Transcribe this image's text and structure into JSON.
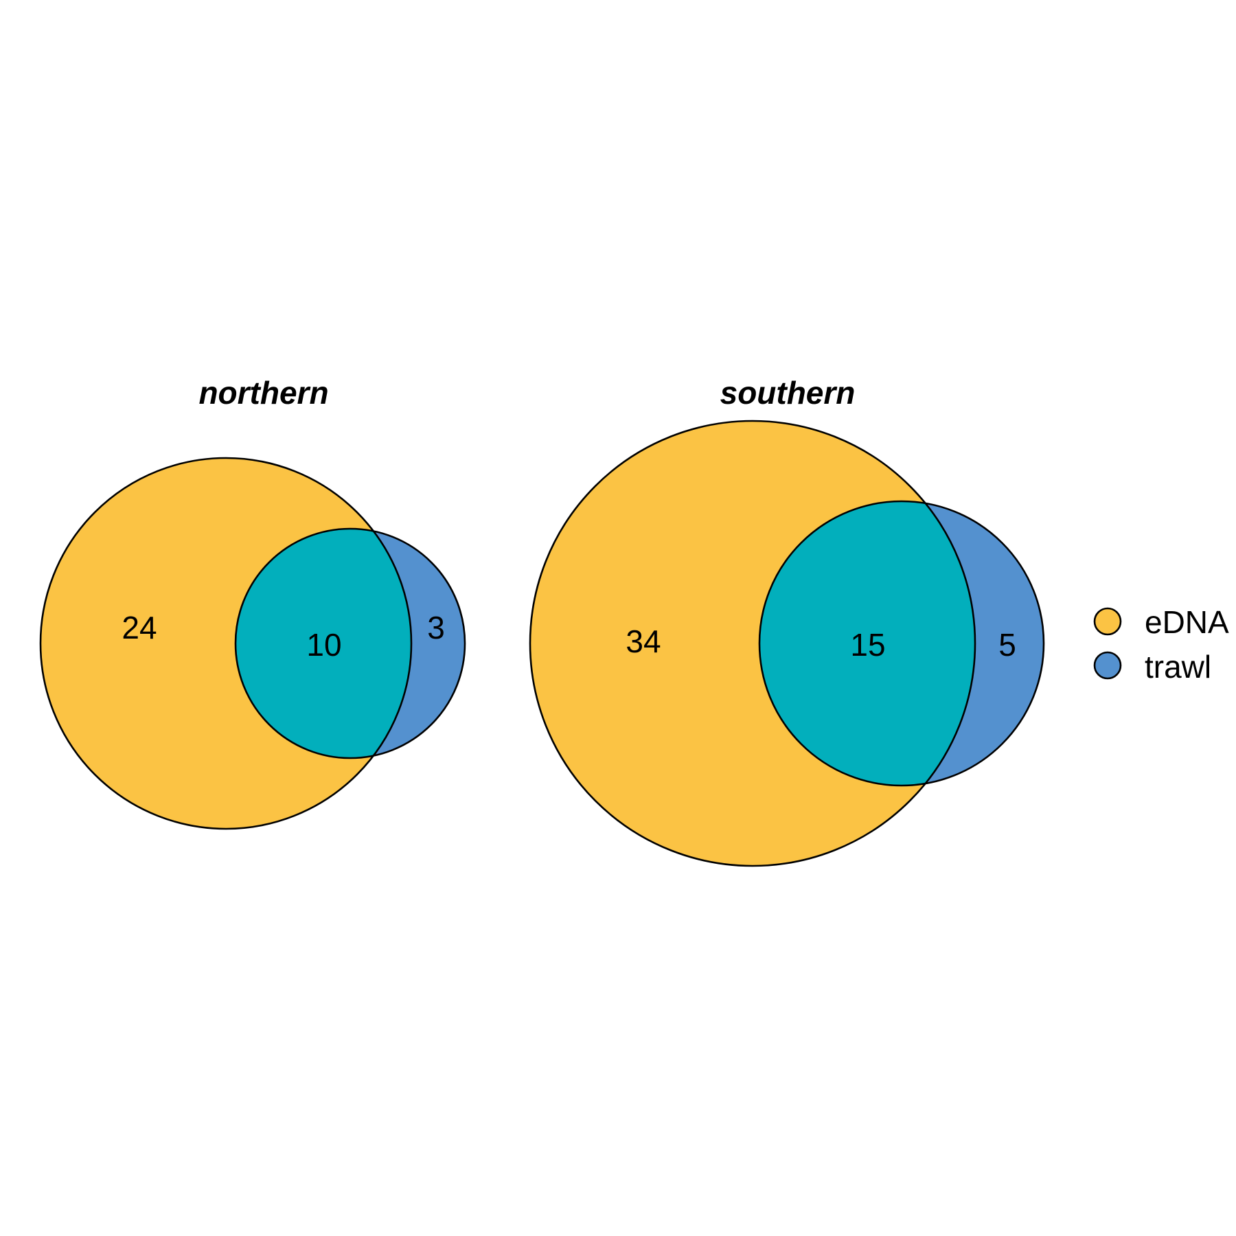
{
  "colors": {
    "edna": "#FBC344",
    "trawl": "#5491CF",
    "overlap": "#02AFBC",
    "outline": "#000000"
  },
  "panels": [
    {
      "title": "northern",
      "edna_only": "24",
      "both": "10",
      "trawl_only": "3"
    },
    {
      "title": "southern",
      "edna_only": "34",
      "both": "15",
      "trawl_only": "5"
    }
  ],
  "legend": [
    {
      "label": "eDNA",
      "color": "#FBC344"
    },
    {
      "label": "trawl",
      "color": "#5491CF"
    }
  ]
}
